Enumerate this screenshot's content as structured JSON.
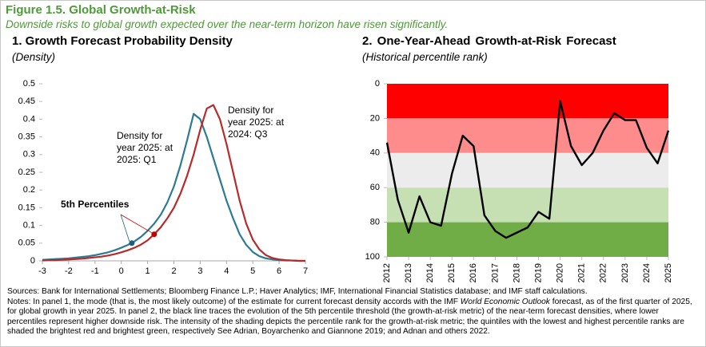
{
  "figure_title": "Figure 1.5. Global Growth-at-Risk",
  "figure_subtitle": "Downside risks to global growth expected over the near-term horizon have risen significantly.",
  "sources": "Sources: Bank for International Settlements; Bloomberg Finance L.P.; Haver Analytics; IMF, International Financial Statistics database; and IMF staff calculations.",
  "notes": [
    "Notes: In panel 1, the mode (that is, the most likely outcome) of the estimate for current forecast density accords with the IMF ",
    "World Economic Outlook",
    " forecast, as of the first quarter of 2025, for global growth in year 2025. In panel 2, the black line traces the evolution of the 5th percentile threshold (the growth-at-risk metric) of the near-term forecast densities, where lower percentiles represent higher downside risk. The intensity of the shading depicts the percentile rank for the growth-at-risk metric; the quintiles with the lowest and highest percentile ranks are shaded the brightest red and brightest green, respectively See Adrian, Boyarchenko and Giannone 2019; and Adnan and others 2022."
  ],
  "chart_data": [
    {
      "type": "line",
      "title": "1. Growth Forecast Probability Density",
      "subtitle": "(Density)",
      "x": [
        -3,
        -2.75,
        -2.5,
        -2.25,
        -2,
        -1.75,
        -1.5,
        -1.25,
        -1,
        -0.75,
        -0.5,
        -0.25,
        0,
        0.25,
        0.5,
        0.75,
        1,
        1.25,
        1.5,
        1.75,
        2,
        2.25,
        2.5,
        2.75,
        3,
        3.25,
        3.5,
        3.75,
        4,
        4.25,
        4.5,
        4.75,
        5,
        5.25,
        5.5,
        5.75,
        6,
        6.25,
        6.5,
        6.75,
        7
      ],
      "series": [
        {
          "name": "Density for year 2025: at 2025: Q1",
          "color": "#2b7b97",
          "values": [
            0.003,
            0.004,
            0.005,
            0.006,
            0.007,
            0.009,
            0.011,
            0.013,
            0.016,
            0.02,
            0.024,
            0.03,
            0.037,
            0.045,
            0.055,
            0.068,
            0.085,
            0.105,
            0.13,
            0.165,
            0.21,
            0.27,
            0.34,
            0.415,
            0.4,
            0.35,
            0.29,
            0.23,
            0.17,
            0.12,
            0.075,
            0.045,
            0.025,
            0.013,
            0.007,
            0.004,
            0.002,
            0.001,
            0.001,
            0,
            0
          ]
        },
        {
          "name": "Density for year 2025: at 2024: Q3",
          "color": "#b82a2a",
          "values": [
            0.001,
            0.002,
            0.002,
            0.003,
            0.004,
            0.005,
            0.006,
            0.008,
            0.01,
            0.012,
            0.015,
            0.019,
            0.024,
            0.03,
            0.037,
            0.046,
            0.058,
            0.075,
            0.095,
            0.12,
            0.15,
            0.19,
            0.24,
            0.3,
            0.37,
            0.43,
            0.44,
            0.4,
            0.33,
            0.25,
            0.17,
            0.105,
            0.06,
            0.032,
            0.016,
            0.008,
            0.004,
            0.002,
            0.001,
            0,
            0
          ]
        }
      ],
      "markers": [
        {
          "x": 0.4,
          "y": 0.05,
          "color": "#1d5f7a"
        },
        {
          "x": 1.25,
          "y": 0.075,
          "color": "#c00000"
        }
      ],
      "annotation": "5th Percentiles",
      "xlim": [
        -3,
        7
      ],
      "xticks": [
        -3,
        -2,
        -1,
        0,
        1,
        2,
        3,
        4,
        5,
        6,
        7
      ],
      "ylim": [
        0,
        0.5
      ],
      "yticks": [
        0,
        0.05,
        0.1,
        0.15,
        0.2,
        0.25,
        0.3,
        0.35,
        0.4,
        0.45,
        0.5
      ]
    },
    {
      "type": "line",
      "title": "2. One-Year-Ahead Growth-at-Risk Forecast",
      "subtitle": "(Historical percentile rank)",
      "x": [
        2012,
        2012.5,
        2013,
        2013.5,
        2014,
        2014.5,
        2015,
        2015.5,
        2016,
        2016.5,
        2017,
        2017.5,
        2018,
        2018.5,
        2019,
        2019.5,
        2020,
        2020.5,
        2021,
        2021.5,
        2022,
        2022.5,
        2023,
        2023.5,
        2024,
        2024.5,
        2025
      ],
      "series": [
        {
          "color": "#000000",
          "values": [
            34,
            67,
            86,
            65,
            80,
            82,
            52,
            30,
            36,
            76,
            85,
            89,
            86,
            83,
            74,
            78,
            10,
            36,
            47,
            40,
            27,
            17,
            21,
            21,
            37,
            46,
            27
          ]
        }
      ],
      "bands": [
        {
          "from": 0,
          "to": 20,
          "color": "#ff0000"
        },
        {
          "from": 20,
          "to": 40,
          "color": "#ff8c8c"
        },
        {
          "from": 40,
          "to": 60,
          "color": "#ececec"
        },
        {
          "from": 60,
          "to": 80,
          "color": "#c6e0b4"
        },
        {
          "from": 80,
          "to": 100,
          "color": "#70ad47"
        }
      ],
      "inverted": true,
      "xlim": [
        2012,
        2025
      ],
      "xticks": [
        2012,
        2013,
        2014,
        2015,
        2016,
        2017,
        2018,
        2019,
        2020,
        2021,
        2022,
        2023,
        2024,
        2025
      ],
      "ylim": [
        0,
        100
      ],
      "yticks": [
        0,
        20,
        40,
        60,
        80,
        100
      ]
    }
  ]
}
